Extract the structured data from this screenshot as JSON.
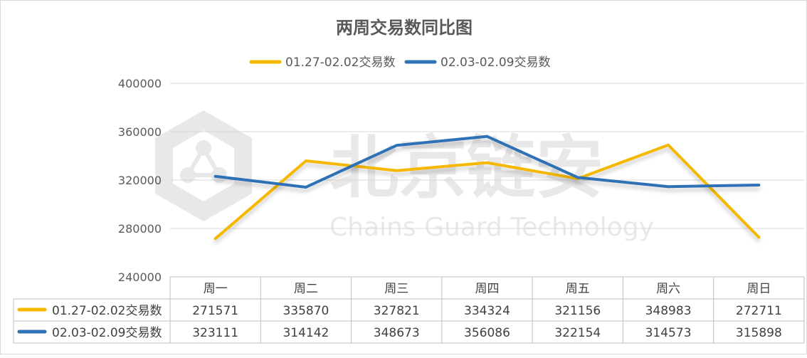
{
  "chart_data": {
    "type": "line",
    "title": "两周交易数同比图",
    "categories": [
      "周一",
      "周二",
      "周三",
      "周四",
      "周五",
      "周六",
      "周日"
    ],
    "series": [
      {
        "name": "01.27-02.02交易数",
        "color": "#F5B800",
        "values": [
          271571,
          335870,
          327821,
          334324,
          321156,
          348983,
          272711
        ]
      },
      {
        "name": "02.03-02.09交易数",
        "color": "#2E72B5",
        "values": [
          323111,
          314142,
          348673,
          356086,
          322154,
          314573,
          315898
        ]
      }
    ],
    "ylim": [
      240000,
      400000
    ],
    "yticks": [
      "400000",
      "360000",
      "320000",
      "280000",
      "240000"
    ],
    "legend": "top",
    "grid": true,
    "data_table": true
  },
  "watermark": {
    "text_cn": "北京链安",
    "text_en": "Chains Guard Technology"
  }
}
